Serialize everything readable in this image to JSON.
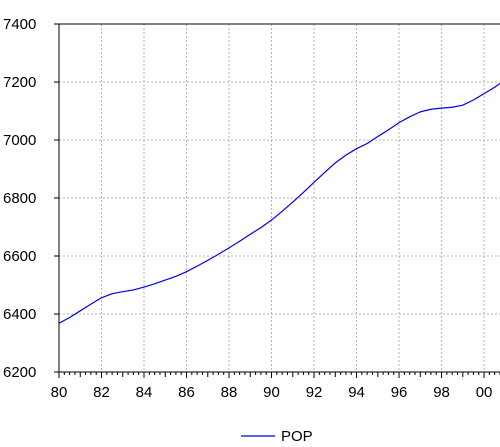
{
  "chart_data": {
    "type": "line",
    "title": "",
    "xlabel": "",
    "ylabel": "",
    "xlim": [
      1980,
      2000.75
    ],
    "ylim": [
      6200,
      7400
    ],
    "x_major_ticks": [
      1980,
      1982,
      1984,
      1986,
      1988,
      1990,
      1992,
      1994,
      1996,
      1998,
      2000
    ],
    "x_tick_labels": [
      "80",
      "82",
      "84",
      "86",
      "88",
      "90",
      "92",
      "94",
      "96",
      "98",
      "00"
    ],
    "y_ticks": [
      6200,
      6400,
      6600,
      6800,
      7000,
      7200,
      7400
    ],
    "y_tick_labels": [
      "6200",
      "6400",
      "6600",
      "6800",
      "7000",
      "7200",
      "7400"
    ],
    "grid": true,
    "legend_position": "bottom-center",
    "series": [
      {
        "name": "POP",
        "color": "#0000ee",
        "x": [
          1980,
          1980.5,
          1981,
          1981.5,
          1982,
          1982.5,
          1983,
          1983.5,
          1984,
          1984.5,
          1985,
          1985.5,
          1986,
          1986.5,
          1987,
          1987.5,
          1988,
          1988.5,
          1989,
          1989.5,
          1990,
          1990.5,
          1991,
          1991.5,
          1992,
          1992.5,
          1993,
          1993.5,
          1994,
          1994.5,
          1995,
          1995.5,
          1996,
          1996.5,
          1997,
          1997.5,
          1998,
          1998.5,
          1999,
          1999.5,
          2000,
          2000.5,
          2000.75
        ],
        "y": [
          6368,
          6388,
          6411,
          6434,
          6456,
          6470,
          6477,
          6483,
          6493,
          6504,
          6517,
          6530,
          6546,
          6565,
          6585,
          6606,
          6628,
          6651,
          6675,
          6698,
          6724,
          6754,
          6786,
          6819,
          6854,
          6888,
          6921,
          6948,
          6970,
          6988,
          7012,
          7035,
          7060,
          7080,
          7097,
          7106,
          7110,
          7113,
          7120,
          7138,
          7160,
          7182,
          7195
        ]
      }
    ]
  }
}
